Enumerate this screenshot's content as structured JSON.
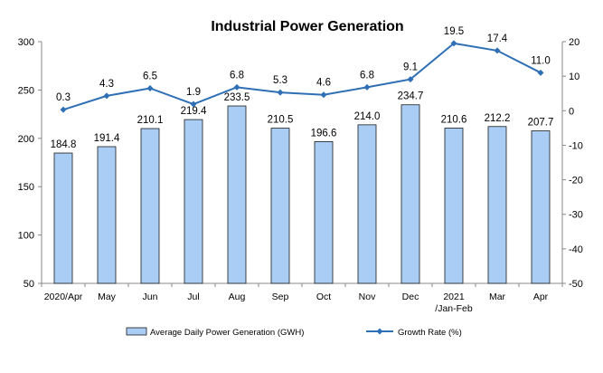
{
  "chart_data": {
    "type": "bar",
    "title": "Industrial Power Generation",
    "categories": [
      [
        "2020/Apr"
      ],
      [
        "May"
      ],
      [
        "Jun"
      ],
      [
        "Jul"
      ],
      [
        "Aug"
      ],
      [
        "Sep"
      ],
      [
        "Oct"
      ],
      [
        "Nov"
      ],
      [
        "Dec"
      ],
      [
        "2021",
        "/Jan-Feb"
      ],
      [
        "Mar"
      ],
      [
        "Apr"
      ]
    ],
    "series": [
      {
        "name": "Average Daily Power Generation (GWH)",
        "type": "bar",
        "axis": "left",
        "color": "#a9cdf5",
        "values": [
          184.8,
          191.4,
          210.1,
          219.4,
          233.5,
          210.5,
          196.6,
          214.0,
          234.7,
          210.6,
          212.2,
          207.7
        ],
        "labels": [
          "184.8",
          "191.4",
          "210.1",
          "219.4",
          "233.5",
          "210.5",
          "196.6",
          "214.0",
          "234.7",
          "210.6",
          "212.2",
          "207.7"
        ]
      },
      {
        "name": "Growth Rate (%)",
        "type": "line",
        "axis": "right",
        "color": "#2e6fb5",
        "values": [
          0.3,
          4.3,
          6.5,
          1.9,
          6.8,
          5.3,
          4.6,
          6.8,
          9.1,
          19.5,
          17.4,
          11.0
        ],
        "labels": [
          "0.3",
          "4.3",
          "6.5",
          "1.9",
          "6.8",
          "5.3",
          "4.6",
          "6.8",
          "9.1",
          "19.5",
          "17.4",
          "11.0"
        ]
      }
    ],
    "y_left": {
      "min": 50,
      "max": 300,
      "ticks": [
        "50",
        "100",
        "150",
        "200",
        "250",
        "300"
      ]
    },
    "y_right": {
      "min": -50,
      "max": 20,
      "ticks": [
        "-50",
        "-40",
        "-30",
        "-20",
        "-10",
        "0",
        "10",
        "20"
      ]
    },
    "grid": false,
    "legend_position": "bottom"
  }
}
